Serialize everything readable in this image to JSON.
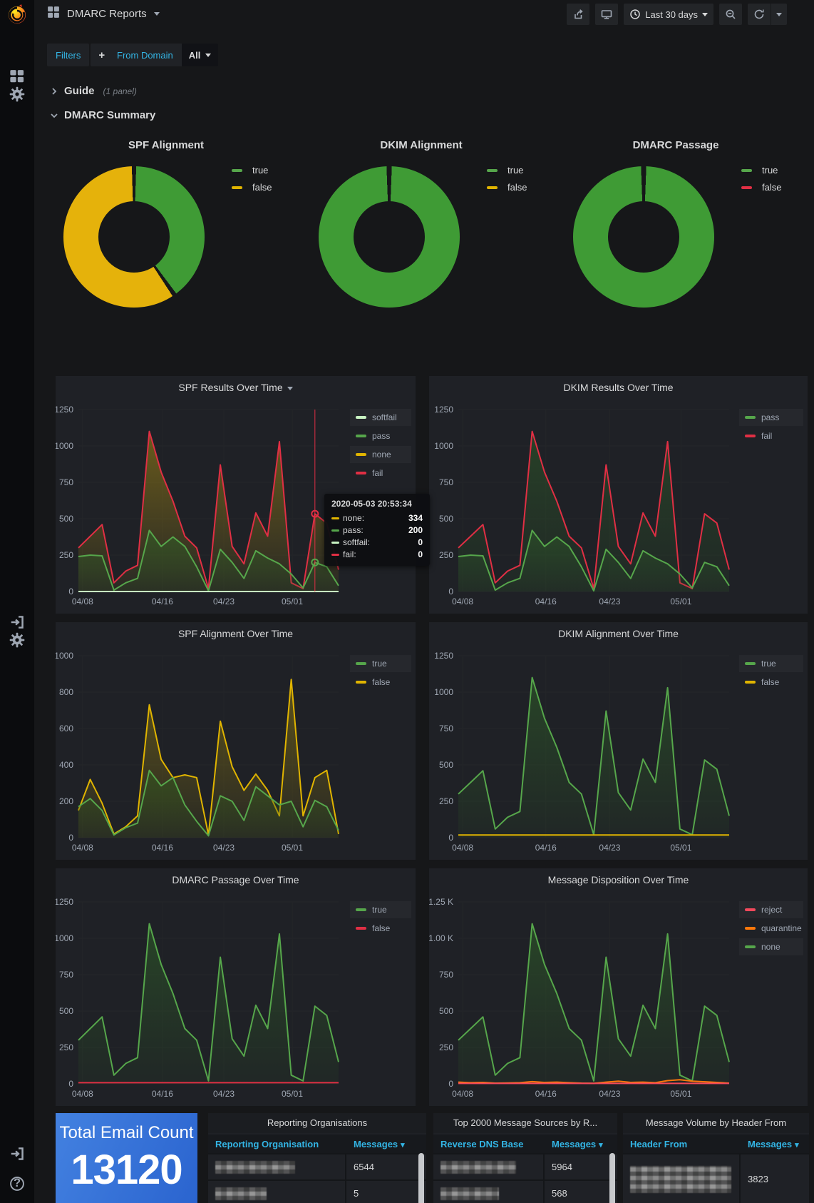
{
  "nav": {
    "title": "DMARC Reports",
    "time_range": "Last 30 days"
  },
  "sidebar": {
    "icons_top": [
      "apps",
      "settings"
    ],
    "icons_mid": [
      "sign-in",
      "settings"
    ],
    "icons_bottom": [
      "sign-in",
      "help"
    ]
  },
  "filters": {
    "label": "Filters",
    "add_label": "+",
    "from_domain_label": "From Domain",
    "from_domain_value": "All"
  },
  "sections": {
    "guide": {
      "label": "Guide",
      "meta": "(1 panel)"
    },
    "summary": {
      "label": "DMARC Summary"
    }
  },
  "colors": {
    "green": "#56A64B",
    "donut_green": "#3F9B35",
    "yellow": "#E0B400",
    "donut_yellow": "#E5B20B",
    "red": "#E02F44",
    "pale_green": "#C8F2C2",
    "orange": "#FF780A",
    "pink_red": "#F2495C",
    "accent_cyan": "#33B5E5",
    "stat_blue": "#2F6FD9"
  },
  "donuts": [
    {
      "title": "SPF Alignment",
      "legend": [
        {
          "label": "true",
          "color": "#56A64B"
        },
        {
          "label": "false",
          "color": "#E0B400"
        }
      ],
      "segments": [
        {
          "color": "#161719",
          "pct": 0.5
        },
        {
          "color": "#3F9B35",
          "pct": 39.3
        },
        {
          "color": "#161719",
          "pct": 1.0
        },
        {
          "color": "#E5B20B",
          "pct": 58.7
        },
        {
          "color": "#161719",
          "pct": 0.5
        }
      ]
    },
    {
      "title": "DKIM Alignment",
      "legend": [
        {
          "label": "true",
          "color": "#56A64B"
        },
        {
          "label": "false",
          "color": "#E0B400"
        }
      ],
      "segments": [
        {
          "color": "#161719",
          "pct": 0.6
        },
        {
          "color": "#3F9B35",
          "pct": 98.8
        },
        {
          "color": "#161719",
          "pct": 0.6
        }
      ]
    },
    {
      "title": "DMARC Passage",
      "legend": [
        {
          "label": "true",
          "color": "#56A64B"
        },
        {
          "label": "false",
          "color": "#E02F44"
        }
      ],
      "segments": [
        {
          "color": "#161719",
          "pct": 0.6
        },
        {
          "color": "#3F9B35",
          "pct": 98.8
        },
        {
          "color": "#161719",
          "pct": 0.6
        }
      ]
    }
  ],
  "charts": {
    "spf_results": {
      "type": "area",
      "title": "SPF Results Over Time",
      "title_caret": true,
      "ymax": 1250,
      "yticks": [
        "0",
        "250",
        "500",
        "750",
        "1000",
        "1250"
      ],
      "xticks": [
        {
          "f": 0.016,
          "label": "04/08"
        },
        {
          "f": 0.323,
          "label": "04/16"
        },
        {
          "f": 0.559,
          "label": "04/23"
        },
        {
          "f": 0.822,
          "label": "05/01"
        }
      ],
      "legend": [
        {
          "label": "softfail",
          "color": "#C8F2C2"
        },
        {
          "label": "pass",
          "color": "#56A64B"
        },
        {
          "label": "none",
          "color": "#E0B400"
        },
        {
          "label": "fail",
          "color": "#E02F44"
        }
      ],
      "series": [
        {
          "name": "stack-top-fail",
          "color": "#E02F44",
          "fill": "#B49511",
          "fo": [
            0.5,
            0.07
          ],
          "values": [
            300,
            380,
            460,
            60,
            140,
            180,
            1100,
            820,
            620,
            380,
            300,
            20,
            870,
            310,
            190,
            540,
            380,
            1030,
            60,
            20,
            534,
            470,
            150
          ]
        },
        {
          "name": "pass",
          "color": "#56A64B",
          "fill": "#2F5B25",
          "fo": [
            0.65,
            0.15
          ],
          "values": [
            240,
            250,
            245,
            10,
            60,
            90,
            420,
            310,
            375,
            310,
            170,
            5,
            290,
            200,
            90,
            280,
            230,
            190,
            120,
            25,
            200,
            170,
            40
          ]
        },
        {
          "name": "softfail",
          "color": "#C8F2C2",
          "flat": 0
        }
      ],
      "crosshair": {
        "i": 20,
        "markers": [
          {
            "v": 534,
            "color": "#E02F44"
          },
          {
            "v": 200,
            "color": "#56A64B"
          }
        ]
      }
    },
    "dkim_results": {
      "type": "area",
      "title": "DKIM Results Over Time",
      "ymax": 1250,
      "yticks": [
        "0",
        "250",
        "500",
        "750",
        "1000",
        "1250"
      ],
      "xticks": [
        {
          "f": 0.016,
          "label": "04/08"
        },
        {
          "f": 0.323,
          "label": "04/16"
        },
        {
          "f": 0.559,
          "label": "04/23"
        },
        {
          "f": 0.822,
          "label": "05/01"
        }
      ],
      "legend": [
        {
          "label": "pass",
          "color": "#56A64B"
        },
        {
          "label": "fail",
          "color": "#E02F44"
        }
      ],
      "series": [
        {
          "name": "fail",
          "color": "#E02F44",
          "fill": "#2E5C28",
          "fo": [
            0.55,
            0.1
          ],
          "values": [
            300,
            380,
            460,
            60,
            140,
            180,
            1100,
            820,
            620,
            380,
            300,
            20,
            870,
            310,
            190,
            540,
            380,
            1030,
            60,
            20,
            534,
            470,
            150
          ]
        },
        {
          "name": "pass",
          "color": "#56A64B",
          "fill": "#2E5C28",
          "fo": [
            0.5,
            0.12
          ],
          "values": [
            240,
            250,
            245,
            10,
            60,
            90,
            420,
            310,
            375,
            310,
            170,
            5,
            290,
            200,
            90,
            280,
            230,
            190,
            120,
            25,
            200,
            170,
            40
          ]
        }
      ]
    },
    "spf_align": {
      "type": "area",
      "title": "SPF Alignment Over Time",
      "ymax": 1000,
      "yticks": [
        "0",
        "200",
        "400",
        "600",
        "800",
        "1000"
      ],
      "xticks": [
        {
          "f": 0.016,
          "label": "04/08"
        },
        {
          "f": 0.323,
          "label": "04/16"
        },
        {
          "f": 0.559,
          "label": "04/23"
        },
        {
          "f": 0.822,
          "label": "05/01"
        }
      ],
      "legend": [
        {
          "label": "true",
          "color": "#56A64B"
        },
        {
          "label": "false",
          "color": "#E0B400"
        }
      ],
      "series": [
        {
          "name": "false",
          "color": "#E0B400",
          "fill": "#9A830F",
          "fo": [
            0.5,
            0.08
          ],
          "values": [
            150,
            320,
            190,
            20,
            60,
            120,
            730,
            430,
            330,
            345,
            330,
            15,
            640,
            390,
            260,
            350,
            260,
            120,
            870,
            120,
            330,
            370,
            20
          ]
        },
        {
          "name": "true",
          "color": "#56A64B",
          "fill": "#30571E",
          "fo": [
            0.6,
            0.12
          ],
          "values": [
            170,
            215,
            150,
            15,
            55,
            80,
            370,
            285,
            330,
            180,
            90,
            10,
            230,
            200,
            95,
            280,
            230,
            180,
            200,
            60,
            205,
            170,
            40
          ]
        }
      ]
    },
    "dkim_align": {
      "type": "area",
      "title": "DKIM Alignment Over Time",
      "ymax": 1250,
      "yticks": [
        "0",
        "250",
        "500",
        "750",
        "1000",
        "1250"
      ],
      "xticks": [
        {
          "f": 0.016,
          "label": "04/08"
        },
        {
          "f": 0.323,
          "label": "04/16"
        },
        {
          "f": 0.559,
          "label": "04/23"
        },
        {
          "f": 0.822,
          "label": "05/01"
        }
      ],
      "legend": [
        {
          "label": "true",
          "color": "#56A64B"
        },
        {
          "label": "false",
          "color": "#E0B400"
        }
      ],
      "series": [
        {
          "name": "true",
          "color": "#56A64B",
          "fill": "#2E5C28",
          "fo": [
            0.6,
            0.1
          ],
          "values": [
            300,
            380,
            460,
            60,
            140,
            180,
            1100,
            820,
            620,
            380,
            300,
            20,
            870,
            310,
            190,
            540,
            380,
            1030,
            60,
            20,
            534,
            470,
            150
          ]
        },
        {
          "name": "false",
          "color": "#E0B400",
          "flat": 18
        }
      ]
    },
    "dmarc_passage": {
      "type": "area",
      "title": "DMARC Passage Over Time",
      "ymax": 1250,
      "yticks": [
        "0",
        "250",
        "500",
        "750",
        "1000",
        "1250"
      ],
      "xticks": [
        {
          "f": 0.016,
          "label": "04/08"
        },
        {
          "f": 0.323,
          "label": "04/16"
        },
        {
          "f": 0.559,
          "label": "04/23"
        },
        {
          "f": 0.822,
          "label": "05/01"
        }
      ],
      "legend": [
        {
          "label": "true",
          "color": "#56A64B"
        },
        {
          "label": "false",
          "color": "#E02F44"
        }
      ],
      "series": [
        {
          "name": "true",
          "color": "#56A64B",
          "fill": "#2E5C28",
          "fo": [
            0.6,
            0.1
          ],
          "values": [
            300,
            380,
            460,
            60,
            140,
            180,
            1100,
            820,
            620,
            380,
            300,
            20,
            870,
            310,
            190,
            540,
            380,
            1030,
            60,
            20,
            534,
            470,
            150
          ]
        },
        {
          "name": "false",
          "color": "#E02F44",
          "flat": 8
        }
      ]
    },
    "disposition": {
      "type": "area",
      "title": "Message Disposition Over Time",
      "ymax": 1250,
      "yticks": [
        "0",
        "250",
        "500",
        "750",
        "1.00 K",
        "1.25 K"
      ],
      "xticks": [
        {
          "f": 0.016,
          "label": "04/08"
        },
        {
          "f": 0.323,
          "label": "04/16"
        },
        {
          "f": 0.559,
          "label": "04/23"
        },
        {
          "f": 0.822,
          "label": "05/01"
        }
      ],
      "legend": [
        {
          "label": "reject",
          "color": "#F2495C"
        },
        {
          "label": "quarantine",
          "color": "#FF780A"
        },
        {
          "label": "none",
          "color": "#56A64B"
        }
      ],
      "series": [
        {
          "name": "none",
          "color": "#56A64B",
          "fill": "#2E5C28",
          "fo": [
            0.6,
            0.1
          ],
          "values": [
            300,
            380,
            460,
            60,
            140,
            180,
            1100,
            820,
            620,
            380,
            300,
            20,
            870,
            310,
            190,
            540,
            380,
            1030,
            60,
            20,
            534,
            470,
            150
          ]
        },
        {
          "name": "quarantine",
          "color": "#FF780A",
          "values": [
            12,
            8,
            10,
            5,
            6,
            8,
            15,
            10,
            12,
            8,
            5,
            4,
            12,
            18,
            10,
            12,
            8,
            22,
            28,
            18,
            14,
            10,
            5
          ]
        },
        {
          "name": "reject",
          "color": "#F2495C",
          "flat": 3
        }
      ]
    }
  },
  "tooltip": {
    "time": "2020-05-03 20:53:34",
    "rows": [
      {
        "label": "none:",
        "value": "334",
        "color": "#E0B400"
      },
      {
        "label": "pass:",
        "value": "200",
        "color": "#56A64B"
      },
      {
        "label": "softfail:",
        "value": "0",
        "color": "#C8F2C2"
      },
      {
        "label": "fail:",
        "value": "0",
        "color": "#E02F44"
      }
    ]
  },
  "stat": {
    "title": "Total Email Count",
    "value": "13120"
  },
  "tables": [
    {
      "title": "Reporting Organisations",
      "columns": [
        "Reporting Organisation",
        "Messages"
      ],
      "rows": [
        {
          "redacted": true,
          "messages": "6544"
        },
        {
          "redacted": true,
          "messages": "5"
        },
        {
          "redacted": true,
          "messages": ""
        }
      ]
    },
    {
      "title": "Top 2000 Message Sources by R...",
      "columns": [
        "Reverse DNS Base",
        "Messages"
      ],
      "rows": [
        {
          "redacted": true,
          "messages": "5964"
        },
        {
          "redacted": true,
          "messages": "568"
        },
        {
          "redacted": true,
          "messages": ""
        }
      ]
    },
    {
      "title": "Message Volume by Header From",
      "columns": [
        "Header From",
        "Messages"
      ],
      "rows": [
        {
          "redacted": true,
          "messages": "3823"
        },
        {
          "redacted": true,
          "messages": ""
        }
      ]
    }
  ]
}
